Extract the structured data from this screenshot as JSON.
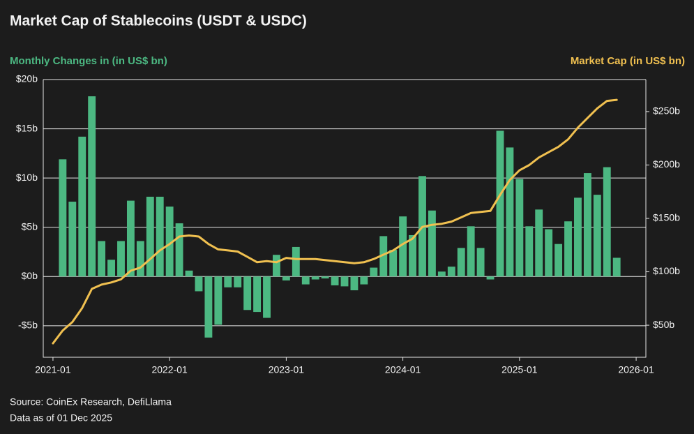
{
  "chart_data": {
    "type": "bar+line",
    "title": "Market Cap of Stablecoins (USDT & USDC)",
    "y_label": "Monthly Changes in (in US$ bn)",
    "y2_label": "Market Cap (in US$ bn)",
    "source": "Source: CoinEx Research, DefiLlama",
    "note": "Data as of 01 Dec 2025",
    "x": [
      "2021-01",
      "2021-02",
      "2021-03",
      "2021-04",
      "2021-05",
      "2021-06",
      "2021-07",
      "2021-08",
      "2021-09",
      "2021-10",
      "2021-11",
      "2021-12",
      "2022-01",
      "2022-02",
      "2022-03",
      "2022-04",
      "2022-05",
      "2022-06",
      "2022-07",
      "2022-08",
      "2022-09",
      "2022-10",
      "2022-11",
      "2022-12",
      "2023-01",
      "2023-02",
      "2023-03",
      "2023-04",
      "2023-05",
      "2023-06",
      "2023-07",
      "2023-08",
      "2023-09",
      "2023-10",
      "2023-11",
      "2023-12",
      "2024-01",
      "2024-02",
      "2024-03",
      "2024-04",
      "2024-05",
      "2024-06",
      "2024-07",
      "2024-08",
      "2024-09",
      "2024-10",
      "2024-11",
      "2024-12",
      "2025-01",
      "2025-02",
      "2025-03",
      "2025-04",
      "2025-05",
      "2025-06",
      "2025-07",
      "2025-08",
      "2025-09",
      "2025-10",
      "2025-11"
    ],
    "series": [
      {
        "name": "Monthly Changes",
        "type": "bar",
        "color": "#4cb882",
        "axis": "y",
        "values": [
          null,
          11.9,
          7.6,
          14.2,
          18.3,
          3.6,
          1.7,
          3.6,
          7.7,
          3.6,
          8.1,
          8.1,
          7.1,
          5.4,
          0.6,
          -1.5,
          -6.2,
          -4.9,
          -1.1,
          -1.1,
          -3.4,
          -3.6,
          -4.2,
          2.2,
          -0.4,
          3.0,
          -0.8,
          -0.3,
          -0.2,
          -0.9,
          -1.0,
          -1.4,
          -0.8,
          0.9,
          4.1,
          2.7,
          6.1,
          4.2,
          10.2,
          6.7,
          0.5,
          1.0,
          2.9,
          5.1,
          2.9,
          -0.3,
          14.8,
          13.1,
          9.9,
          5.1,
          6.8,
          4.8,
          3.3,
          5.6,
          8.0,
          10.5,
          8.3,
          11.1,
          1.9
        ]
      },
      {
        "name": "Market Cap",
        "type": "line",
        "color": "#f0c050",
        "axis": "y2",
        "values": [
          33,
          45,
          53,
          66,
          84,
          88,
          90,
          93,
          101,
          104,
          112,
          120,
          126,
          133,
          134,
          133,
          126,
          121,
          120,
          119,
          114,
          109,
          110,
          109,
          113,
          112,
          112,
          112,
          111,
          110,
          109,
          108,
          109,
          112,
          116,
          120,
          126,
          131,
          142,
          144,
          145,
          147,
          151,
          155,
          156,
          157,
          172,
          186,
          195,
          200,
          207,
          212,
          217,
          224,
          235,
          244,
          253,
          260,
          261
        ]
      }
    ],
    "xlim": [
      "2020-12",
      "2026-02"
    ],
    "xticks": [
      "2021-01",
      "2022-01",
      "2023-01",
      "2024-01",
      "2025-01",
      "2026-01"
    ],
    "ylim": [
      -8.2,
      20
    ],
    "yticks": [
      {
        "value": -5,
        "label": "-$5b"
      },
      {
        "value": 0,
        "label": "$0b"
      },
      {
        "value": 5,
        "label": "$5b"
      },
      {
        "value": 10,
        "label": "$10b"
      },
      {
        "value": 15,
        "label": "$15b"
      },
      {
        "value": 20,
        "label": "$20b"
      }
    ],
    "y2lim": [
      20,
      280
    ],
    "y2ticks": [
      {
        "value": 50,
        "label": "$50b"
      },
      {
        "value": 100,
        "label": "$100b"
      },
      {
        "value": 150,
        "label": "$150b"
      },
      {
        "value": 200,
        "label": "$200b"
      },
      {
        "value": 250,
        "label": "$250b"
      }
    ],
    "grid": true
  }
}
